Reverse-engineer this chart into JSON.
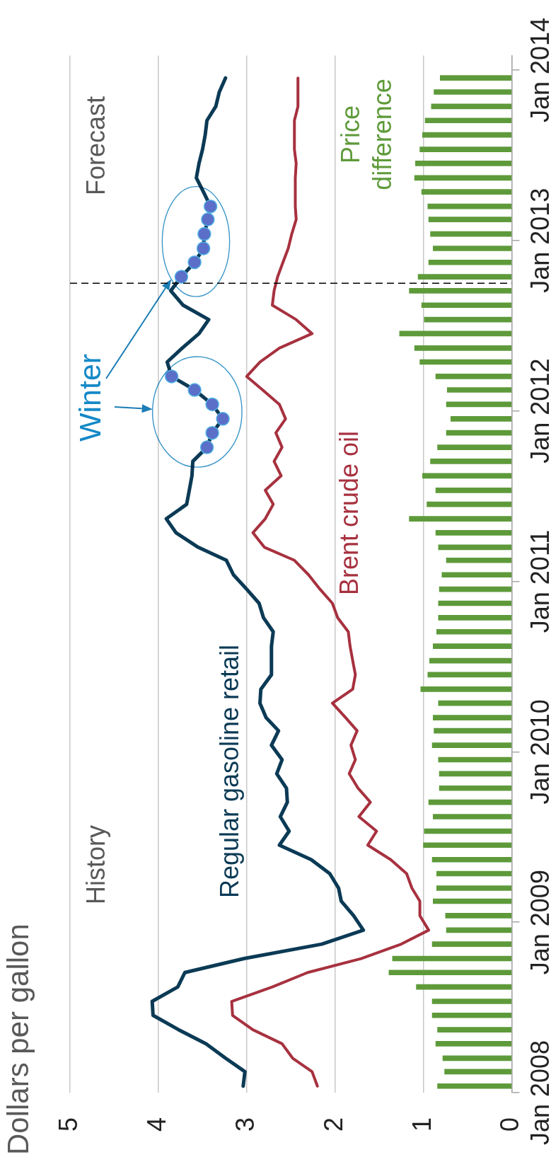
{
  "chart_data": {
    "type": "line",
    "orientation": "horizontal",
    "title": "Dollars per gallon",
    "annotations": [
      "History",
      "Forecast",
      "Winter"
    ],
    "x": [
      "2008-01-15",
      "2008-02-15",
      "2008-03-15",
      "2008-04-15",
      "2008-05-15",
      "2008-06-15",
      "2008-07-15",
      "2008-08-15",
      "2008-09-15",
      "2008-10-15",
      "2008-11-15",
      "2008-12-15",
      "2009-01-15",
      "2009-02-15",
      "2009-03-15",
      "2009-04-15",
      "2009-05-15",
      "2009-06-15",
      "2009-07-15",
      "2009-08-15",
      "2009-09-15",
      "2009-10-15",
      "2009-11-15",
      "2009-12-15",
      "2010-01-15",
      "2010-02-15",
      "2010-03-15",
      "2010-04-15",
      "2010-05-15",
      "2010-06-15",
      "2010-07-15",
      "2010-08-15",
      "2010-09-15",
      "2010-10-15",
      "2010-11-15",
      "2010-12-15",
      "2011-01-15",
      "2011-02-15",
      "2011-03-15",
      "2011-04-15",
      "2011-05-15",
      "2011-06-15",
      "2011-07-15",
      "2011-08-15",
      "2011-09-15",
      "2011-10-15",
      "2011-11-15",
      "2011-12-15",
      "2012-01-15",
      "2012-02-15",
      "2012-03-15",
      "2012-04-15",
      "2012-05-15",
      "2012-06-15",
      "2012-07-15",
      "2012-08-15",
      "2012-09-15",
      "2012-10-15",
      "2012-11-15",
      "2012-12-15",
      "2013-01-15",
      "2013-02-15",
      "2013-03-15",
      "2013-04-15",
      "2013-05-15",
      "2013-06-15",
      "2013-07-15",
      "2013-08-15",
      "2013-09-15",
      "2013-10-15",
      "2013-11-15",
      "2013-12-15"
    ],
    "xlim": [
      5,
      0
    ],
    "xticks": [
      5,
      4,
      3,
      2,
      1,
      0
    ],
    "ylim": [
      "2008-01-01",
      "2014-02-01"
    ],
    "yticks": [
      {
        "value": "2008-01-01",
        "label": "Jan 2008"
      },
      {
        "value": "2009-01-01",
        "label": "Jan 2009"
      },
      {
        "value": "2010-01-01",
        "label": "Jan 2010"
      },
      {
        "value": "2011-01-01",
        "label": "Jan 2011"
      },
      {
        "value": "2012-01-01",
        "label": "Jan 2012"
      },
      {
        "value": "2013-01-01",
        "label": "Jan 2013"
      },
      {
        "value": "2014-01-01",
        "label": "Jan 2014"
      }
    ],
    "grid": "x",
    "marker": "none",
    "series": [
      {
        "name": "Regular gasoline retail",
        "color": "#0b3a55",
        "values": [
          3.04,
          3.02,
          3.24,
          3.46,
          3.77,
          4.06,
          4.07,
          3.78,
          3.7,
          3.03,
          2.15,
          1.68,
          1.79,
          1.93,
          1.96,
          2.06,
          2.27,
          2.63,
          2.52,
          2.62,
          2.54,
          2.55,
          2.66,
          2.6,
          2.72,
          2.64,
          2.78,
          2.85,
          2.84,
          2.72,
          2.72,
          2.72,
          2.7,
          2.81,
          2.86,
          3.0,
          3.15,
          3.23,
          3.55,
          3.8,
          3.91,
          3.68,
          3.65,
          3.62,
          3.61,
          3.45,
          3.39,
          3.27,
          3.39,
          3.59,
          3.85,
          3.9,
          3.73,
          3.54,
          3.43,
          3.72,
          3.86,
          3.74,
          3.59,
          3.49,
          3.48,
          3.44,
          3.41,
          3.49,
          3.57,
          3.54,
          3.5,
          3.47,
          3.45,
          3.35,
          3.31,
          3.24
        ]
      },
      {
        "name": "Brent crude oil",
        "color": "#a7313f",
        "values": [
          2.2,
          2.26,
          2.48,
          2.6,
          2.93,
          3.16,
          3.17,
          2.71,
          2.31,
          1.7,
          1.25,
          0.94,
          1.04,
          1.04,
          1.13,
          1.19,
          1.37,
          1.63,
          1.53,
          1.73,
          1.6,
          1.74,
          1.84,
          1.77,
          1.82,
          1.75,
          1.88,
          2.03,
          1.8,
          1.77,
          1.8,
          1.83,
          1.85,
          1.97,
          2.03,
          2.17,
          2.3,
          2.46,
          2.8,
          2.93,
          2.79,
          2.7,
          2.79,
          2.61,
          2.69,
          2.6,
          2.67,
          2.56,
          2.63,
          2.82,
          3.0,
          2.85,
          2.63,
          2.26,
          2.44,
          2.71,
          2.69,
          2.65,
          2.59,
          2.53,
          2.49,
          2.44,
          2.45,
          2.45,
          2.45,
          2.44,
          2.46,
          2.46,
          2.46,
          2.42,
          2.42,
          2.42
        ]
      },
      {
        "name": "Price difference",
        "type": "bar",
        "color": "#5e9a3a",
        "values": [
          0.84,
          0.76,
          0.78,
          0.86,
          0.84,
          0.9,
          0.9,
          1.08,
          1.39,
          1.35,
          0.9,
          0.74,
          0.75,
          0.89,
          0.85,
          0.85,
          0.9,
          1.0,
          0.99,
          0.89,
          0.94,
          0.82,
          0.82,
          0.83,
          0.9,
          0.88,
          0.89,
          0.83,
          1.03,
          0.95,
          0.93,
          0.89,
          0.85,
          0.83,
          0.83,
          0.82,
          0.79,
          0.74,
          0.83,
          0.86,
          1.16,
          0.96,
          0.86,
          1.01,
          0.92,
          0.84,
          0.74,
          0.69,
          0.74,
          0.73,
          0.86,
          1.04,
          1.1,
          1.27,
          0.99,
          1.02,
          1.16,
          1.06,
          0.94,
          0.89,
          0.92,
          0.94,
          0.95,
          1.02,
          1.1,
          1.09,
          1.04,
          1.01,
          0.98,
          0.91,
          0.88,
          0.81
        ]
      },
      {
        "type": "scatter",
        "color": "#5b6ec8",
        "marker": "circle",
        "x": [
          "2011-10-15",
          "2011-11-15",
          "2011-12-15",
          "2012-01-15",
          "2012-02-15",
          "2012-03-15",
          "2012-10-15",
          "2012-11-15",
          "2012-12-15",
          "2013-01-15",
          "2013-02-15",
          "2013-03-15"
        ],
        "values": [
          3.45,
          3.39,
          3.27,
          3.39,
          3.59,
          3.85,
          3.74,
          3.59,
          3.49,
          3.48,
          3.44,
          3.41
        ]
      }
    ],
    "ref_lines": [
      {
        "axis": "y",
        "value": "2012-10-01",
        "line_style": "dashed",
        "color": "#000000"
      }
    ]
  }
}
